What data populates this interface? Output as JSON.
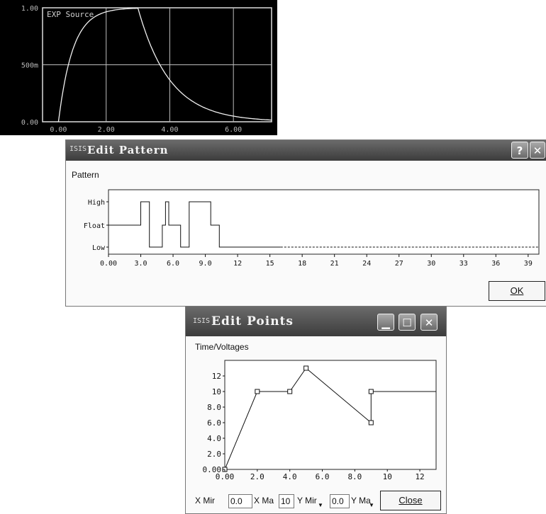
{
  "scope": {
    "title": "EXP Source",
    "y_ticks": [
      "1.00",
      "500m",
      "0.00"
    ],
    "x_ticks": [
      "0.00",
      "2.00",
      "4.00",
      "6.00"
    ]
  },
  "pattern_window": {
    "title": "Edit Pattern",
    "app_icon": "ISIS",
    "section_label": "Pattern",
    "level_labels": [
      "High",
      "Float",
      "Low"
    ],
    "x_ticks": [
      "0.00",
      "3.0",
      "6.0",
      "9.0",
      "12",
      "15",
      "18",
      "21",
      "24",
      "27",
      "30",
      "33",
      "36",
      "39"
    ],
    "ok_label": "OK",
    "help_icon": "?",
    "close_icon": "✕"
  },
  "points_window": {
    "title": "Edit Points",
    "app_icon": "ISIS",
    "section_label": "Time/Voltages",
    "y_ticks": [
      "12",
      "10",
      "8.0",
      "6.0",
      "4.0",
      "2.0",
      "0.00"
    ],
    "x_ticks": [
      "0.00",
      "2.0",
      "4.0",
      "6.0",
      "8.0",
      "10",
      "12"
    ],
    "x_min_label": "X Mir",
    "x_min_value": "0.0",
    "x_max_label": "X Ma",
    "x_max_value": "10",
    "y_min_label": "Y Mir",
    "y_min_value": "0.0",
    "y_max_label": "Y Ma",
    "close_label": "Close"
  },
  "chart_data": [
    {
      "type": "line",
      "title": "EXP Source",
      "x": [
        0.0,
        0.5,
        1.0,
        1.5,
        2.0,
        2.5,
        3.0,
        3.5,
        4.0,
        4.5,
        5.0,
        5.5,
        6.0,
        6.5,
        7.0
      ],
      "y": [
        0.0,
        0.63,
        0.86,
        0.95,
        0.98,
        0.99,
        1.0,
        0.63,
        0.37,
        0.23,
        0.14,
        0.08,
        0.05,
        0.03,
        0.02
      ],
      "xlim": [
        0.0,
        7.2
      ],
      "ylim": [
        0.0,
        1.0
      ],
      "grid": true
    },
    {
      "type": "line",
      "x": [
        0,
        3,
        3,
        3.8,
        3.8,
        5,
        5,
        5.3,
        5.3,
        5.6,
        5.6,
        6.7,
        6.7,
        7.5,
        7.5,
        9.5,
        9.5,
        10.3,
        10.3,
        15,
        15,
        40
      ],
      "levels": [
        "Low",
        "Float",
        "High"
      ],
      "y": [
        "Float",
        "Float",
        "High",
        "High",
        "Low",
        "Low",
        "Float",
        "Float",
        "High",
        "High",
        "Float",
        "Float",
        "Low",
        "Low",
        "High",
        "High",
        "Float",
        "Float",
        "Low",
        "Low",
        "Low",
        "Low"
      ],
      "xlim": [
        0,
        40
      ]
    },
    {
      "type": "line",
      "x": [
        0,
        2,
        4,
        5,
        9,
        9,
        13
      ],
      "y": [
        0,
        10,
        10,
        13,
        6,
        10,
        10
      ],
      "xlim": [
        0,
        13
      ],
      "ylim": [
        0,
        14
      ]
    }
  ]
}
